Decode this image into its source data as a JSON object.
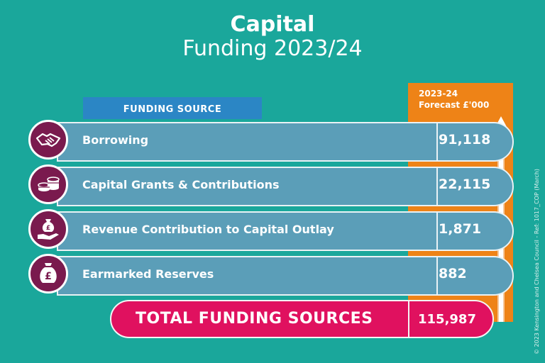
{
  "title": {
    "line1": "Capital",
    "line2": "Funding 2023/24"
  },
  "header": {
    "funding_source": "FUNDING SOURCE",
    "forecast_line1": "2023-24",
    "forecast_line2": "Forecast £'000"
  },
  "rows": [
    {
      "label": "Borrowing",
      "value": "91,118",
      "icon": "handshake-icon"
    },
    {
      "label": "Capital Grants & Contributions",
      "value": "22,115",
      "icon": "coins-icon"
    },
    {
      "label": "Revenue Contribution to Capital Outlay",
      "value": "1,871",
      "icon": "money-bag-hand-icon"
    },
    {
      "label": "Earmarked Reserves",
      "value": "882",
      "icon": "money-bag-icon"
    }
  ],
  "total": {
    "label": "TOTAL FUNDING SOURCES",
    "value": "115,987"
  },
  "footer": {
    "copyright": "© 2023 Kensington and Chelsea Council - Ref: 1017_COP (March)"
  },
  "colors": {
    "background": "#1aa79b",
    "bar": "#5b9eb8",
    "orange": "#ee8317",
    "total": "#e0115f",
    "icon_circle": "#7a1a4e",
    "header": "#2b86c5"
  }
}
